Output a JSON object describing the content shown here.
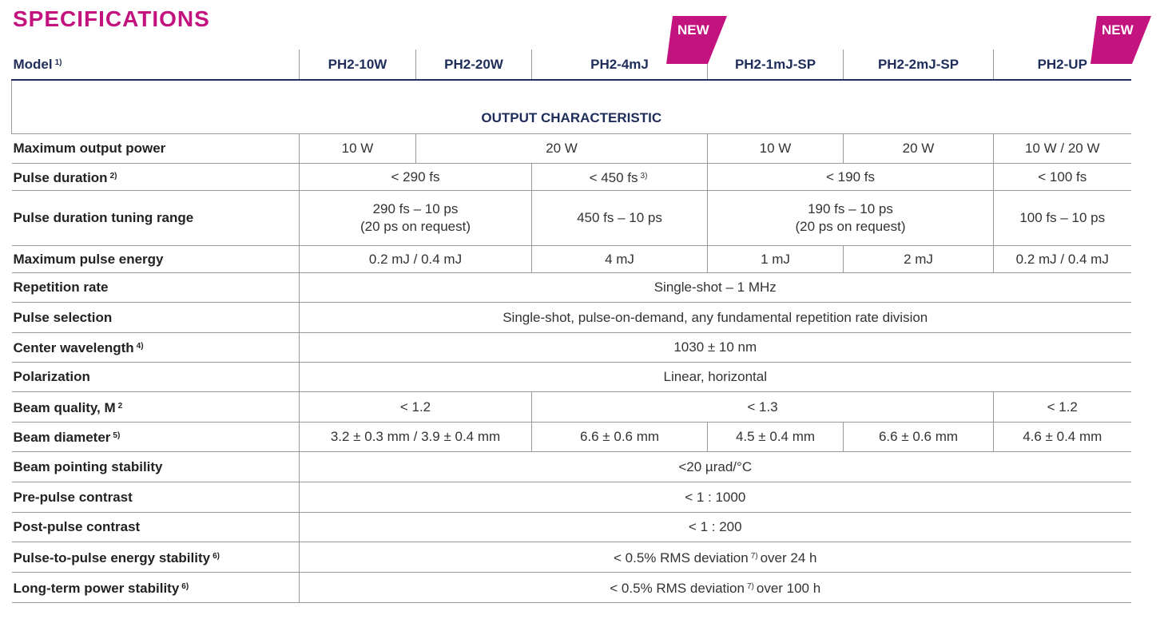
{
  "title": "SPECIFICATIONS",
  "header": {
    "label": "Model",
    "note": "1)",
    "models": [
      {
        "name": "PH2-10W"
      },
      {
        "name": "PH2-20W"
      },
      {
        "name": "PH2-4mJ",
        "badge": "NEW"
      },
      {
        "name": "PH2-1mJ-SP"
      },
      {
        "name": "PH2-2mJ-SP"
      },
      {
        "name": "PH2-UP",
        "badge": "NEW"
      }
    ]
  },
  "section": "OUTPUT CHARACTERISTIC",
  "rows": [
    {
      "label": "Maximum output power",
      "cells": [
        "10 W",
        "20 W",
        "10 W",
        "20 W",
        "10 W / 20 W"
      ]
    },
    {
      "label": "Pulse duration",
      "note": "2)",
      "cells": [
        "< 290 fs",
        {
          "text": "< 450 fs",
          "note": "3)"
        },
        "< 190 fs",
        "< 100 fs"
      ]
    },
    {
      "label": "Pulse duration tuning range",
      "cells": [
        "290 fs – 10 ps\n(20 ps on request)",
        "450 fs – 10 ps",
        "190 fs – 10 ps\n(20 ps on request)",
        "100 fs – 10 ps"
      ]
    },
    {
      "label": "Maximum pulse energy",
      "cells": [
        "0.2 mJ / 0.4 mJ",
        "4 mJ",
        "1 mJ",
        "2 mJ",
        "0.2 mJ / 0.4 mJ"
      ]
    },
    {
      "label": "Repetition rate",
      "cells": [
        "Single-shot – 1 MHz"
      ]
    },
    {
      "label": "Pulse selection",
      "cells": [
        "Single-shot, pulse-on-demand, any fundamental repetition rate division"
      ]
    },
    {
      "label": "Center wavelength",
      "note": "4)",
      "cells": [
        "1030 ± 10 nm"
      ]
    },
    {
      "label": "Polarization",
      "cells": [
        "Linear, horizontal"
      ]
    },
    {
      "label": "Beam quality, M",
      "note": "2",
      "cells": [
        "< 1.2",
        "< 1.3",
        "< 1.2"
      ]
    },
    {
      "label": "Beam diameter",
      "note": "5)",
      "cells": [
        "3.2 ± 0.3 mm / 3.9 ± 0.4 mm",
        "6.6 ± 0.6 mm",
        "4.5 ± 0.4 mm",
        "6.6 ± 0.6 mm",
        "4.6 ± 0.4 mm"
      ]
    },
    {
      "label": "Beam pointing stability",
      "cells": [
        "<20 µrad/°C"
      ]
    },
    {
      "label": "Pre-pulse contrast",
      "cells": [
        "< 1 : 1000"
      ]
    },
    {
      "label": "Post-pulse contrast",
      "cells": [
        "< 1 : 200"
      ]
    },
    {
      "label": "Pulse-to-pulse energy stability",
      "note": "6)",
      "cells": [
        {
          "text": "< 0.5% RMS deviation",
          "note": "7)",
          "after": "over 24 h"
        }
      ]
    },
    {
      "label": "Long-term power stability",
      "note": "6)",
      "cells": [
        {
          "text": "< 0.5% RMS deviation",
          "note": "7)",
          "after": "over 100 h"
        }
      ]
    }
  ]
}
